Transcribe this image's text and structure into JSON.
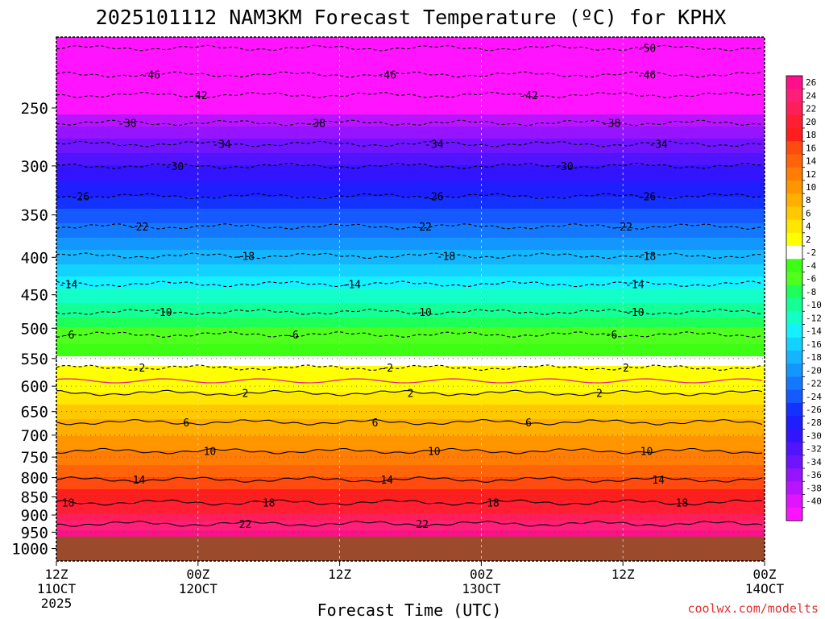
{
  "chart_data": {
    "type": "heatmap",
    "title": "2025101112 NAM3KM Forecast Temperature (ºC) for KPHX",
    "xlabel": "Forecast Time (UTC)",
    "ylabel": "",
    "credit": "coolwx.com/modelts",
    "x_range_hours": [
      0,
      60
    ],
    "y_range_hpa": [
      200,
      1040
    ],
    "y_scale": "log-pressure (reversed)",
    "x_ticks": [
      {
        "hour": 0,
        "line1": "12Z",
        "line2": "11OCT",
        "line3": "2025"
      },
      {
        "hour": 12,
        "line1": "00Z",
        "line2": "12OCT",
        "line3": ""
      },
      {
        "hour": 24,
        "line1": "12Z",
        "line2": "",
        "line3": ""
      },
      {
        "hour": 36,
        "line1": "00Z",
        "line2": "13OCT",
        "line3": ""
      },
      {
        "hour": 48,
        "line1": "12Z",
        "line2": "",
        "line3": ""
      },
      {
        "hour": 60,
        "line1": "00Z",
        "line2": "14OCT",
        "line3": ""
      }
    ],
    "y_ticks": [
      "250",
      "300",
      "350",
      "400",
      "450",
      "500",
      "550",
      "600",
      "650",
      "700",
      "750",
      "800",
      "850",
      "900",
      "950",
      "1000"
    ],
    "colorbar": [
      {
        "label": "26",
        "color": "#ff0f8c"
      },
      {
        "label": "24",
        "color": "#ff1e78"
      },
      {
        "label": "22",
        "color": "#ff1e5a"
      },
      {
        "label": "20",
        "color": "#ff1e32"
      },
      {
        "label": "18",
        "color": "#ff1e1e"
      },
      {
        "label": "16",
        "color": "#ff4b0f"
      },
      {
        "label": "14",
        "color": "#ff640a"
      },
      {
        "label": "12",
        "color": "#ff7d05"
      },
      {
        "label": "10",
        "color": "#ff9600"
      },
      {
        "label": "8",
        "color": "#ffaf00"
      },
      {
        "label": "6",
        "color": "#ffc800"
      },
      {
        "label": "4",
        "color": "#ffe600"
      },
      {
        "label": "2",
        "color": "#ffff00"
      },
      {
        "label": "-2",
        "color": "#ffffff"
      },
      {
        "label": "-4",
        "color": "#3cff14"
      },
      {
        "label": "-6",
        "color": "#50ff1e"
      },
      {
        "label": "-8",
        "color": "#1eff5a"
      },
      {
        "label": "-10",
        "color": "#14ff96"
      },
      {
        "label": "-12",
        "color": "#14ffc8"
      },
      {
        "label": "-14",
        "color": "#14f0ff"
      },
      {
        "label": "-16",
        "color": "#14d2ff"
      },
      {
        "label": "-18",
        "color": "#14b4ff"
      },
      {
        "label": "-20",
        "color": "#1496ff"
      },
      {
        "label": "-22",
        "color": "#1478ff"
      },
      {
        "label": "-24",
        "color": "#145aff"
      },
      {
        "label": "-26",
        "color": "#1432ff"
      },
      {
        "label": "-28",
        "color": "#1e1eff"
      },
      {
        "label": "-30",
        "color": "#3214ff"
      },
      {
        "label": "-32",
        "color": "#5014ff"
      },
      {
        "label": "-34",
        "color": "#6e14ff"
      },
      {
        "label": "-36",
        "color": "#9614ff"
      },
      {
        "label": "-38",
        "color": "#b914ff"
      },
      {
        "label": "-40",
        "color": "#e114ff"
      },
      {
        "label": "",
        "color": "#ff14ff"
      }
    ],
    "ground_color": "#9b4a2b",
    "ground_level_hpa": 963,
    "profile": [
      {
        "p": 200,
        "t": -52
      },
      {
        "p": 225,
        "t": -48
      },
      {
        "p": 250,
        "t": -41
      },
      {
        "p": 275,
        "t": -36
      },
      {
        "p": 300,
        "t": -32
      },
      {
        "p": 325,
        "t": -29
      },
      {
        "p": 350,
        "t": -25
      },
      {
        "p": 375,
        "t": -22
      },
      {
        "p": 400,
        "t": -19
      },
      {
        "p": 425,
        "t": -16
      },
      {
        "p": 450,
        "t": -13
      },
      {
        "p": 475,
        "t": -11
      },
      {
        "p": 500,
        "t": -8
      },
      {
        "p": 525,
        "t": -6
      },
      {
        "p": 550,
        "t": -3.5
      },
      {
        "p": 575,
        "t": -1
      },
      {
        "p": 600,
        "t": 1
      },
      {
        "p": 625,
        "t": 3
      },
      {
        "p": 650,
        "t": 5
      },
      {
        "p": 675,
        "t": 6.5
      },
      {
        "p": 700,
        "t": 8
      },
      {
        "p": 750,
        "t": 11
      },
      {
        "p": 800,
        "t": 14
      },
      {
        "p": 850,
        "t": 17
      },
      {
        "p": 900,
        "t": 20.5
      },
      {
        "p": 950,
        "t": 24.5
      },
      {
        "p": 1000,
        "t": 28
      }
    ],
    "contours": [
      {
        "level": -50,
        "p": 207,
        "labels": [
          {
            "h": 50,
            "text": "-50"
          }
        ]
      },
      {
        "level": -46,
        "p": 225,
        "labels": [
          {
            "h": 8,
            "text": "-46"
          },
          {
            "h": 28,
            "text": "-46"
          },
          {
            "h": 50,
            "text": "-46"
          }
        ]
      },
      {
        "level": -42,
        "p": 240,
        "labels": [
          {
            "h": 12,
            "text": "-42"
          },
          {
            "h": 40,
            "text": "-42"
          }
        ]
      },
      {
        "level": -38,
        "p": 262,
        "labels": [
          {
            "h": 6,
            "text": "-38"
          },
          {
            "h": 22,
            "text": "-38"
          },
          {
            "h": 47,
            "text": "-38"
          }
        ]
      },
      {
        "level": -34,
        "p": 280,
        "labels": [
          {
            "h": 14,
            "text": "-34"
          },
          {
            "h": 32,
            "text": "-34"
          },
          {
            "h": 51,
            "text": "-34"
          }
        ]
      },
      {
        "level": -30,
        "p": 300,
        "labels": [
          {
            "h": 10,
            "text": "-30"
          },
          {
            "h": 43,
            "text": "-30"
          }
        ]
      },
      {
        "level": -26,
        "p": 330,
        "labels": [
          {
            "h": 2,
            "text": "-26"
          },
          {
            "h": 32,
            "text": "-26"
          },
          {
            "h": 50,
            "text": "-26"
          }
        ]
      },
      {
        "level": -22,
        "p": 363,
        "labels": [
          {
            "h": 7,
            "text": "-22"
          },
          {
            "h": 31,
            "text": "-22"
          },
          {
            "h": 48,
            "text": "-22"
          }
        ]
      },
      {
        "level": -18,
        "p": 398,
        "labels": [
          {
            "h": 16,
            "text": "-18"
          },
          {
            "h": 33,
            "text": "-18"
          },
          {
            "h": 50,
            "text": "-18"
          }
        ]
      },
      {
        "level": -14,
        "p": 435,
        "labels": [
          {
            "h": 1,
            "text": "-14"
          },
          {
            "h": 25,
            "text": "-14"
          },
          {
            "h": 49,
            "text": "-14"
          }
        ]
      },
      {
        "level": -10,
        "p": 475,
        "labels": [
          {
            "h": 9,
            "text": "-10"
          },
          {
            "h": 31,
            "text": "-10"
          },
          {
            "h": 49,
            "text": "-10"
          }
        ]
      },
      {
        "level": -6,
        "p": 510,
        "labels": [
          {
            "h": 1,
            "text": "-6"
          },
          {
            "h": 20,
            "text": "-6"
          },
          {
            "h": 47,
            "text": "-6"
          }
        ]
      },
      {
        "level": -2,
        "p": 566,
        "labels": [
          {
            "h": 7,
            "text": "-2"
          },
          {
            "h": 28,
            "text": "-2"
          },
          {
            "h": 48,
            "text": "-2"
          }
        ]
      },
      {
        "level": 2,
        "p": 613,
        "labels": [
          {
            "h": 16,
            "text": "2"
          },
          {
            "h": 30,
            "text": "2"
          },
          {
            "h": 46,
            "text": "2"
          }
        ]
      },
      {
        "level": 6,
        "p": 672,
        "labels": [
          {
            "h": 11,
            "text": "6"
          },
          {
            "h": 27,
            "text": "6"
          },
          {
            "h": 40,
            "text": "6"
          }
        ]
      },
      {
        "level": 10,
        "p": 736,
        "labels": [
          {
            "h": 13,
            "text": "10"
          },
          {
            "h": 32,
            "text": "10"
          },
          {
            "h": 50,
            "text": "10"
          }
        ]
      },
      {
        "level": 14,
        "p": 805,
        "labels": [
          {
            "h": 7,
            "text": "14"
          },
          {
            "h": 28,
            "text": "14"
          },
          {
            "h": 51,
            "text": "14"
          }
        ]
      },
      {
        "level": 18,
        "p": 865,
        "labels": [
          {
            "h": 1,
            "text": "18"
          },
          {
            "h": 18,
            "text": "18"
          },
          {
            "h": 37,
            "text": "18"
          },
          {
            "h": 53,
            "text": "18"
          }
        ]
      },
      {
        "level": 22,
        "p": 925,
        "labels": [
          {
            "h": 16,
            "text": "22"
          },
          {
            "h": 31,
            "text": "22"
          }
        ]
      }
    ]
  }
}
